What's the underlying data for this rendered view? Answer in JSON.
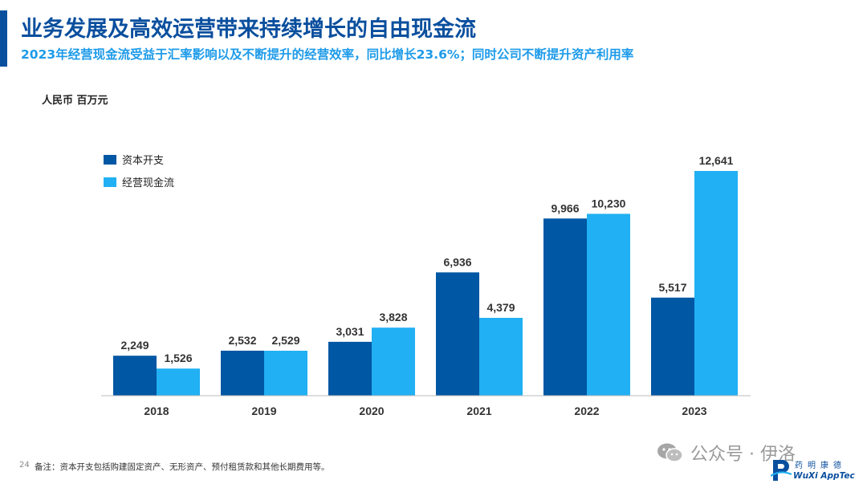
{
  "header": {
    "title": "业务发展及高效运营带来持续增长的自由现金流",
    "subtitle": "2023年经营现金流受益于汇率影响以及不断提升的经营效率，同比增长23.6%；同时公司不断提升资产利用率"
  },
  "colors": {
    "accent": "#0a4f9e",
    "series_dark": "#0057a3",
    "series_light": "#21b0f3"
  },
  "chart_data": {
    "type": "bar",
    "title": "",
    "unit_label": "人民币 百万元",
    "categories": [
      "2018",
      "2019",
      "2020",
      "2021",
      "2022",
      "2023"
    ],
    "series": [
      {
        "name": "资本开支",
        "values": [
          2249,
          2532,
          3031,
          6936,
          9966,
          5517
        ],
        "labels": [
          "2,249",
          "2,532",
          "3,031",
          "6,936",
          "9,966",
          "5,517"
        ],
        "color": "#0057a3"
      },
      {
        "name": "经营现金流",
        "values": [
          1526,
          2529,
          3828,
          4379,
          10230,
          12641
        ],
        "labels": [
          "1,526",
          "2,529",
          "3,828",
          "4,379",
          "10,230",
          "12,641"
        ],
        "color": "#21b0f3"
      }
    ],
    "ylim": [
      0,
      12641
    ],
    "legend_position": "top-left",
    "grid": false
  },
  "footer": {
    "page_number": "24",
    "note": "备注：资本开支包括购建固定资产、无形资产、预付租赁款和其他长期费用等。",
    "watermark": "公众号 · 伊洛",
    "logo_cn": "药明康德",
    "logo_en": "WuXi AppTec"
  }
}
